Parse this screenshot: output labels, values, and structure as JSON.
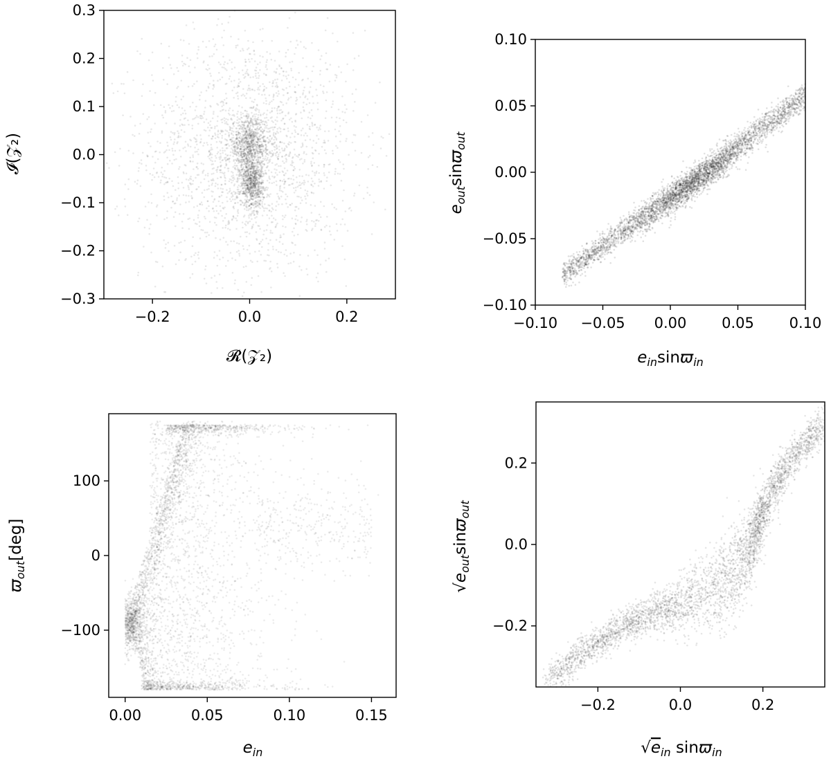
{
  "chart_data": [
    {
      "id": "p1",
      "type": "scatter",
      "title": "",
      "xlabel": "𝓡(𝒵₂)",
      "ylabel": "𝓘(𝒵₂)",
      "xlim": [
        -0.3,
        0.3
      ],
      "ylim": [
        -0.3,
        0.3
      ],
      "xticks": [
        -0.2,
        0.0,
        0.2
      ],
      "xtick_labels": [
        "−0.2",
        "0.0",
        "0.2"
      ],
      "yticks": [
        -0.3,
        -0.2,
        -0.1,
        0.0,
        0.1,
        0.2,
        0.3
      ],
      "ytick_labels": [
        "−0.3",
        "−0.2",
        "−0.1",
        "0.0",
        "0.1",
        "0.2",
        "0.3"
      ],
      "grid": false,
      "point_color": "#000000",
      "density": [
        {
          "x": 0.0,
          "y": 0.0,
          "sx": 0.11,
          "sy": 0.13,
          "weight": 0.55
        },
        {
          "x": 0.0,
          "y": 0.02,
          "sx": 0.022,
          "sy": 0.03,
          "weight": 0.25
        },
        {
          "x": 0.005,
          "y": -0.06,
          "sx": 0.012,
          "sy": 0.025,
          "weight": 0.2
        }
      ]
    },
    {
      "id": "p2",
      "type": "scatter",
      "title": "",
      "xlabel": "e_in sinϖ_in",
      "ylabel": "e_out sinϖ_out",
      "xlim": [
        -0.1,
        0.1
      ],
      "ylim": [
        -0.1,
        0.1
      ],
      "xticks": [
        -0.1,
        -0.05,
        0.0,
        0.05,
        0.1
      ],
      "xtick_labels": [
        "−0.10",
        "−0.05",
        "0.00",
        "0.05",
        "0.10"
      ],
      "yticks": [
        -0.1,
        -0.05,
        0.0,
        0.05,
        0.1
      ],
      "ytick_labels": [
        "−0.10",
        "−0.05",
        "0.00",
        "0.05",
        "0.10"
      ],
      "grid": false,
      "point_color": "#000000",
      "trend": {
        "x_start": -0.08,
        "x_end": 0.1,
        "slope": 0.75,
        "intercept": -0.018,
        "spread": 0.005
      },
      "core": {
        "x": 0.018,
        "y": -0.008,
        "sx": 0.02,
        "sy": 0.013
      }
    },
    {
      "id": "p3",
      "type": "scatter",
      "title": "",
      "xlabel": "e_in",
      "ylabel": "ϖ_out[deg]",
      "xlim": [
        -0.01,
        0.165
      ],
      "ylim": [
        -190,
        190
      ],
      "xticks": [
        0.0,
        0.05,
        0.1,
        0.15
      ],
      "xtick_labels": [
        "0.00",
        "0.05",
        "0.10",
        "0.15"
      ],
      "yticks": [
        -100,
        0,
        100
      ],
      "ytick_labels": [
        "−100",
        "0",
        "100"
      ],
      "grid": false,
      "point_color": "#000000",
      "core": {
        "x": 0.005,
        "y": -90
      },
      "band_limits": [
        -180,
        180
      ]
    },
    {
      "id": "p4",
      "type": "scatter",
      "title": "",
      "xlabel": "√e_in sinϖ_in",
      "ylabel": "√e_out sinϖ_out",
      "xlim": [
        -0.35,
        0.35
      ],
      "ylim": [
        -0.35,
        0.35
      ],
      "xticks": [
        -0.2,
        0.0,
        0.2
      ],
      "xtick_labels": [
        "−0.2",
        "0.0",
        "0.2"
      ],
      "yticks": [
        -0.2,
        0.0,
        0.2
      ],
      "ytick_labels": [
        "−0.2",
        "0.0",
        "0.2"
      ],
      "grid": false,
      "point_color": "#000000",
      "curve": [
        [
          -0.32,
          -0.33
        ],
        [
          -0.2,
          -0.24
        ],
        [
          -0.1,
          -0.18
        ],
        [
          0.0,
          -0.15
        ],
        [
          0.1,
          -0.1
        ],
        [
          0.17,
          -0.02
        ],
        [
          0.2,
          0.08
        ],
        [
          0.26,
          0.2
        ],
        [
          0.35,
          0.3
        ]
      ]
    }
  ]
}
